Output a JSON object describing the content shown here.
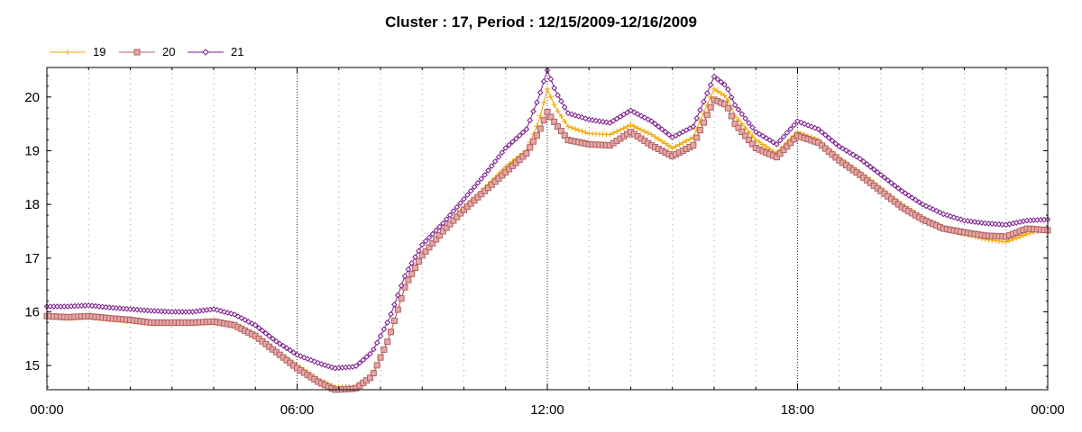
{
  "chart_data": {
    "type": "line",
    "title": "Cluster : 17, Period : 12/15/2009-12/16/2009",
    "xlabel": "",
    "ylabel": "",
    "x_ticks": [
      {
        "hour": 0,
        "label": "00:00"
      },
      {
        "hour": 6,
        "label": "06:00"
      },
      {
        "hour": 12,
        "label": "12:00"
      },
      {
        "hour": 18,
        "label": "18:00"
      },
      {
        "hour": 24,
        "label": "00:00"
      }
    ],
    "y_ticks": [
      15,
      16,
      17,
      18,
      19,
      20
    ],
    "xlim": [
      0,
      24
    ],
    "ylim": [
      14.55,
      20.55
    ],
    "grid": {
      "vertical_major": true,
      "vertical_minor": true,
      "horizontal": false
    },
    "legend_position": "top-left",
    "series": [
      {
        "name": "19",
        "color": "#f0a800",
        "marker": "plus",
        "points": [
          [
            0,
            15.9
          ],
          [
            0.5,
            15.88
          ],
          [
            1,
            15.9
          ],
          [
            1.5,
            15.86
          ],
          [
            2,
            15.82
          ],
          [
            2.5,
            15.78
          ],
          [
            3,
            15.78
          ],
          [
            3.5,
            15.78
          ],
          [
            4,
            15.8
          ],
          [
            4.5,
            15.75
          ],
          [
            5,
            15.55
          ],
          [
            5.5,
            15.25
          ],
          [
            6,
            15.0
          ],
          [
            6.5,
            14.75
          ],
          [
            6.9,
            14.6
          ],
          [
            7.4,
            14.6
          ],
          [
            7.8,
            14.8
          ],
          [
            8.2,
            15.5
          ],
          [
            8.6,
            16.5
          ],
          [
            9,
            17.05
          ],
          [
            9.5,
            17.5
          ],
          [
            10,
            17.95
          ],
          [
            10.5,
            18.3
          ],
          [
            11,
            18.7
          ],
          [
            11.5,
            19.0
          ],
          [
            11.8,
            19.55
          ],
          [
            12,
            20.15
          ],
          [
            12.2,
            19.8
          ],
          [
            12.5,
            19.45
          ],
          [
            13,
            19.32
          ],
          [
            13.5,
            19.3
          ],
          [
            14,
            19.48
          ],
          [
            14.5,
            19.3
          ],
          [
            15,
            19.05
          ],
          [
            15.5,
            19.25
          ],
          [
            16,
            20.15
          ],
          [
            16.3,
            20.0
          ],
          [
            16.5,
            19.65
          ],
          [
            17,
            19.2
          ],
          [
            17.5,
            18.95
          ],
          [
            18,
            19.35
          ],
          [
            18.5,
            19.2
          ],
          [
            19,
            18.85
          ],
          [
            19.5,
            18.6
          ],
          [
            20,
            18.3
          ],
          [
            20.5,
            18.0
          ],
          [
            21,
            17.75
          ],
          [
            21.5,
            17.55
          ],
          [
            22,
            17.45
          ],
          [
            22.5,
            17.35
          ],
          [
            23,
            17.3
          ],
          [
            23.5,
            17.45
          ],
          [
            24,
            17.55
          ]
        ]
      },
      {
        "name": "20",
        "color": "#b06060",
        "fill": "#e6a8a8",
        "marker": "square",
        "points": [
          [
            0,
            15.92
          ],
          [
            0.5,
            15.9
          ],
          [
            1,
            15.92
          ],
          [
            1.5,
            15.88
          ],
          [
            2,
            15.85
          ],
          [
            2.5,
            15.8
          ],
          [
            3,
            15.8
          ],
          [
            3.5,
            15.8
          ],
          [
            4,
            15.82
          ],
          [
            4.5,
            15.75
          ],
          [
            5,
            15.55
          ],
          [
            5.5,
            15.25
          ],
          [
            6,
            14.95
          ],
          [
            6.5,
            14.7
          ],
          [
            6.9,
            14.55
          ],
          [
            7.4,
            14.57
          ],
          [
            7.8,
            14.8
          ],
          [
            8.2,
            15.5
          ],
          [
            8.6,
            16.5
          ],
          [
            9,
            17.05
          ],
          [
            9.5,
            17.5
          ],
          [
            10,
            17.9
          ],
          [
            10.5,
            18.25
          ],
          [
            11,
            18.6
          ],
          [
            11.5,
            18.95
          ],
          [
            11.8,
            19.35
          ],
          [
            12,
            19.72
          ],
          [
            12.2,
            19.5
          ],
          [
            12.5,
            19.2
          ],
          [
            13,
            19.12
          ],
          [
            13.5,
            19.1
          ],
          [
            14,
            19.35
          ],
          [
            14.5,
            19.1
          ],
          [
            15,
            18.9
          ],
          [
            15.5,
            19.1
          ],
          [
            16,
            19.95
          ],
          [
            16.3,
            19.85
          ],
          [
            16.5,
            19.5
          ],
          [
            17,
            19.05
          ],
          [
            17.5,
            18.88
          ],
          [
            18,
            19.28
          ],
          [
            18.5,
            19.15
          ],
          [
            19,
            18.82
          ],
          [
            19.5,
            18.55
          ],
          [
            20,
            18.25
          ],
          [
            20.5,
            17.95
          ],
          [
            21,
            17.72
          ],
          [
            21.5,
            17.55
          ],
          [
            22,
            17.48
          ],
          [
            22.5,
            17.42
          ],
          [
            23,
            17.4
          ],
          [
            23.5,
            17.55
          ],
          [
            24,
            17.52
          ]
        ]
      },
      {
        "name": "21",
        "color": "#7a1a8c",
        "fill": "#ffffff",
        "marker": "diamond",
        "points": [
          [
            0,
            16.1
          ],
          [
            0.5,
            16.1
          ],
          [
            1,
            16.12
          ],
          [
            1.5,
            16.08
          ],
          [
            2,
            16.05
          ],
          [
            2.5,
            16.02
          ],
          [
            3,
            16.0
          ],
          [
            3.5,
            16.0
          ],
          [
            4,
            16.05
          ],
          [
            4.5,
            15.95
          ],
          [
            5,
            15.75
          ],
          [
            5.5,
            15.45
          ],
          [
            6,
            15.2
          ],
          [
            6.5,
            15.05
          ],
          [
            6.9,
            14.95
          ],
          [
            7.4,
            14.98
          ],
          [
            7.8,
            15.25
          ],
          [
            8.2,
            15.85
          ],
          [
            8.6,
            16.7
          ],
          [
            9,
            17.25
          ],
          [
            9.5,
            17.65
          ],
          [
            10,
            18.1
          ],
          [
            10.5,
            18.55
          ],
          [
            11,
            19.05
          ],
          [
            11.5,
            19.4
          ],
          [
            11.8,
            20.0
          ],
          [
            12,
            20.5
          ],
          [
            12.2,
            20.1
          ],
          [
            12.5,
            19.7
          ],
          [
            13,
            19.58
          ],
          [
            13.5,
            19.52
          ],
          [
            14,
            19.75
          ],
          [
            14.5,
            19.55
          ],
          [
            15,
            19.25
          ],
          [
            15.5,
            19.45
          ],
          [
            16,
            20.38
          ],
          [
            16.3,
            20.2
          ],
          [
            16.5,
            19.85
          ],
          [
            17,
            19.35
          ],
          [
            17.5,
            19.12
          ],
          [
            18,
            19.55
          ],
          [
            18.5,
            19.4
          ],
          [
            19,
            19.08
          ],
          [
            19.5,
            18.85
          ],
          [
            20,
            18.55
          ],
          [
            20.5,
            18.25
          ],
          [
            21,
            18.0
          ],
          [
            21.5,
            17.82
          ],
          [
            22,
            17.7
          ],
          [
            22.5,
            17.65
          ],
          [
            23,
            17.62
          ],
          [
            23.5,
            17.7
          ],
          [
            24,
            17.72
          ]
        ]
      }
    ]
  }
}
